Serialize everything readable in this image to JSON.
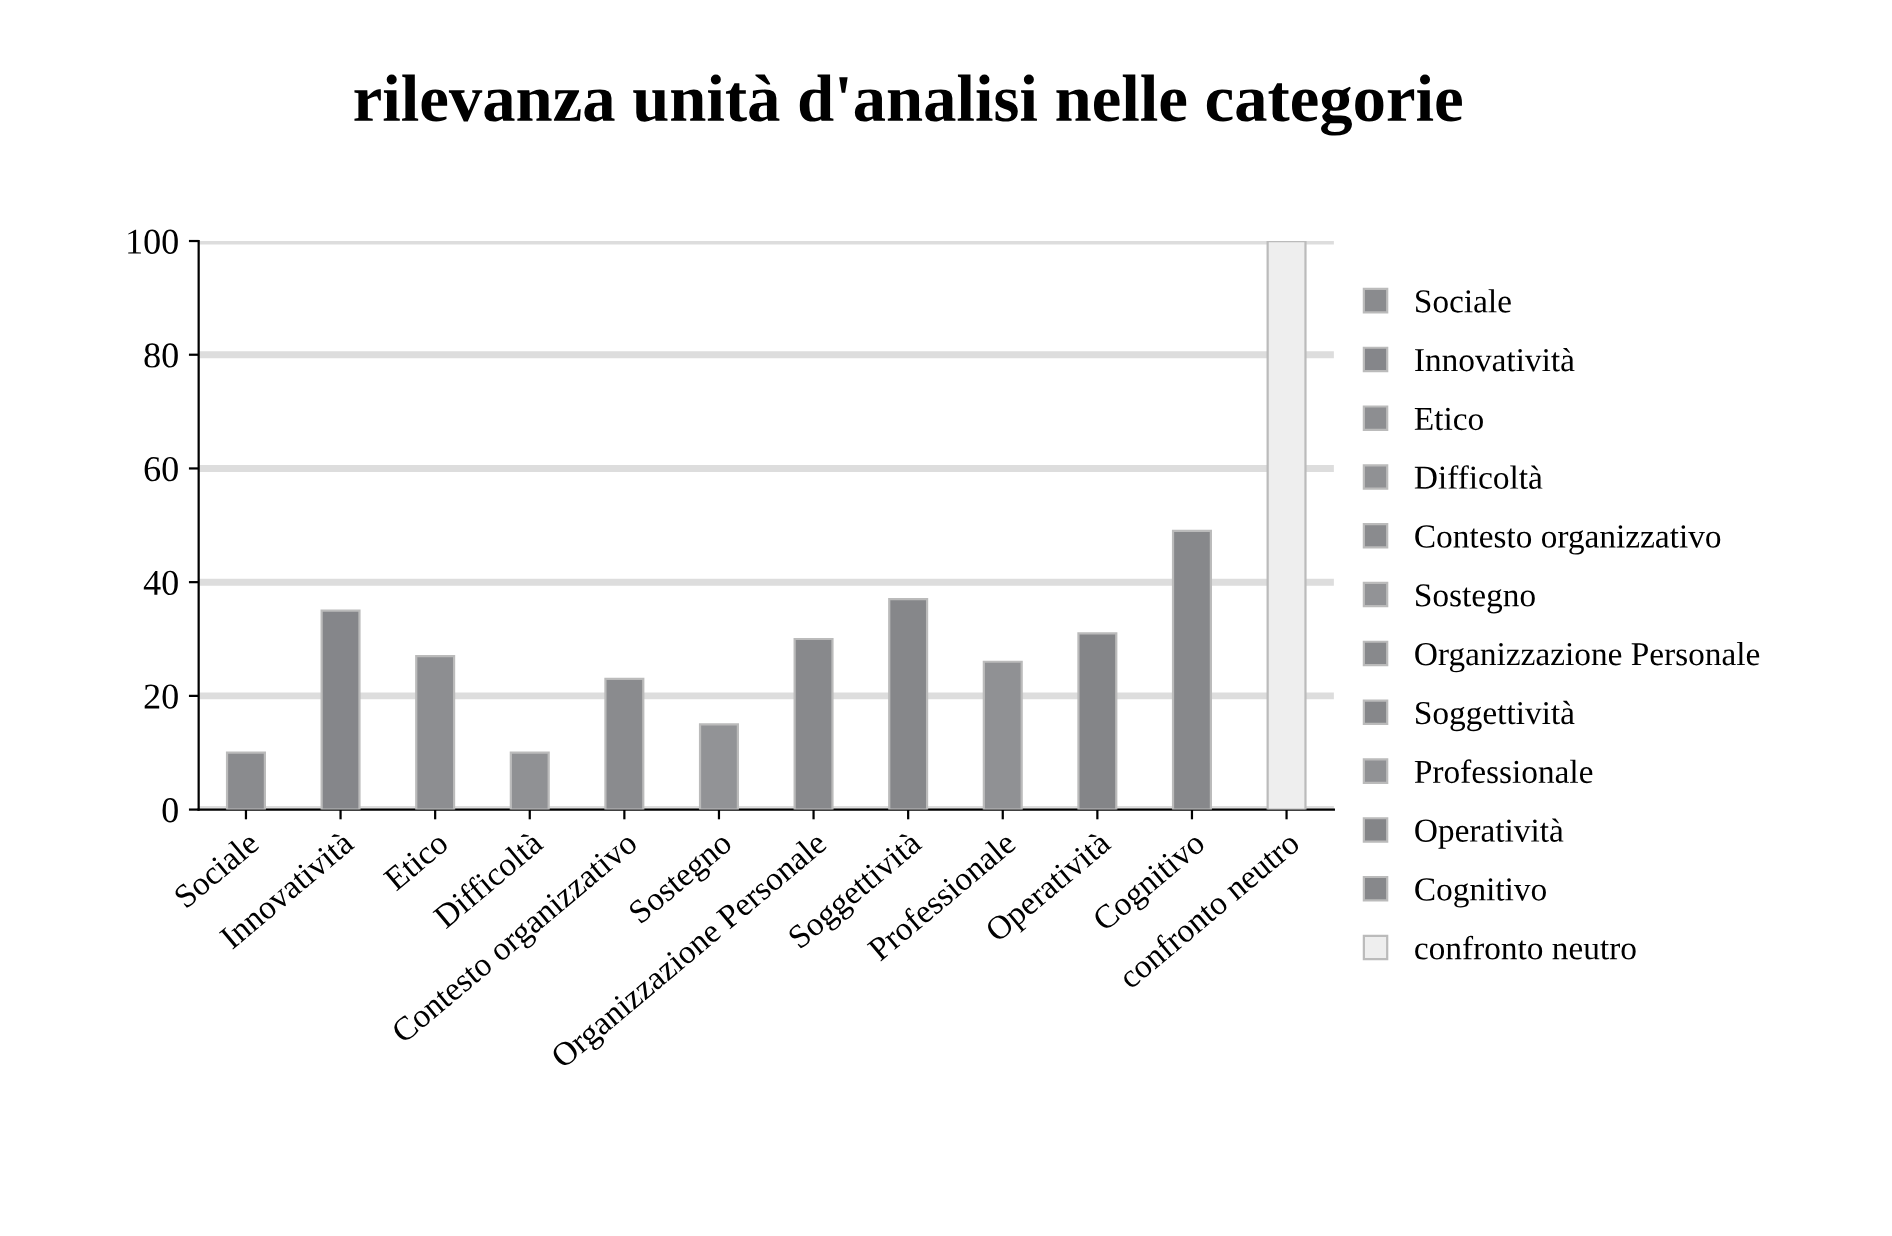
{
  "chart_data": {
    "type": "bar",
    "title": "rilevanza unità d'analisi nelle categorie",
    "categories": [
      "Sociale",
      "Innovatività",
      "Etico",
      "Difficoltà",
      "Contesto organizzativo",
      "Sostegno",
      "Organizzazione Personale",
      "Soggettività",
      "Professionale",
      "Operatività",
      "Cognitivo",
      "confronto neutro"
    ],
    "series": [
      {
        "name": "Sociale",
        "color": "#8a8b8e",
        "values": [
          10,
          null,
          null,
          null,
          null,
          null,
          null,
          null,
          null,
          null,
          null,
          null
        ]
      },
      {
        "name": "Innovatività",
        "color": "#85868a",
        "values": [
          null,
          35,
          null,
          null,
          null,
          null,
          null,
          null,
          null,
          null,
          null,
          null
        ]
      },
      {
        "name": "Etico",
        "color": "#8d8e91",
        "values": [
          null,
          null,
          27,
          null,
          null,
          null,
          null,
          null,
          null,
          null,
          null,
          null
        ]
      },
      {
        "name": "Difficoltà",
        "color": "#909194",
        "values": [
          null,
          null,
          null,
          10,
          null,
          null,
          null,
          null,
          null,
          null,
          null,
          null
        ]
      },
      {
        "name": "Contesto organizzativo",
        "color": "#8a8b8e",
        "values": [
          null,
          null,
          null,
          null,
          23,
          null,
          null,
          null,
          null,
          null,
          null,
          null
        ]
      },
      {
        "name": "Sostegno",
        "color": "#929396",
        "values": [
          null,
          null,
          null,
          null,
          null,
          15,
          null,
          null,
          null,
          null,
          null,
          null
        ]
      },
      {
        "name": "Organizzazione Personale",
        "color": "#88898c",
        "values": [
          null,
          null,
          null,
          null,
          null,
          null,
          30,
          null,
          null,
          null,
          null,
          null
        ]
      },
      {
        "name": "Soggettività",
        "color": "#86878a",
        "values": [
          null,
          null,
          null,
          null,
          null,
          null,
          null,
          37,
          null,
          null,
          null,
          null
        ]
      },
      {
        "name": "Professionale",
        "color": "#909194",
        "values": [
          null,
          null,
          null,
          null,
          null,
          null,
          null,
          null,
          26,
          null,
          null,
          null
        ]
      },
      {
        "name": "Operatività",
        "color": "#848588",
        "values": [
          null,
          null,
          null,
          null,
          null,
          null,
          null,
          null,
          null,
          31,
          null,
          null
        ]
      },
      {
        "name": "Cognitivo",
        "color": "#87888b",
        "values": [
          null,
          null,
          null,
          null,
          null,
          null,
          null,
          null,
          null,
          null,
          49,
          null
        ]
      },
      {
        "name": "confronto neutro",
        "color": "#eeeeee",
        "values": [
          null,
          null,
          null,
          null,
          null,
          null,
          null,
          null,
          null,
          null,
          null,
          100
        ]
      }
    ],
    "ylim": [
      0,
      100
    ],
    "yticks": [
      0,
      20,
      40,
      60,
      80,
      100
    ],
    "grid": "y",
    "legend": "right"
  }
}
